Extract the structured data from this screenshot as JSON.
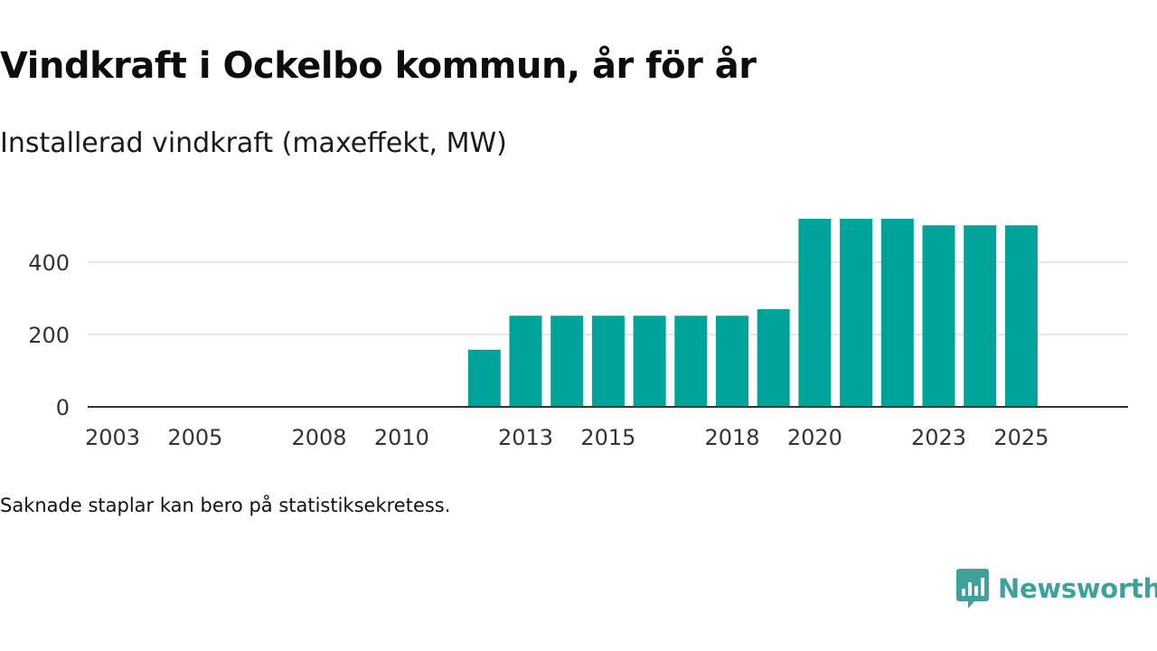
{
  "title": "Vindkraft i Ockelbo kommun, år för år",
  "subtitle": "Installerad vindkraft (maxeffekt, MW)",
  "footnote": "Saknade staplar kan bero på statistiksekretess.",
  "brand": {
    "name": "Newsworthy",
    "color": "#3fa19b"
  },
  "colors": {
    "bar": "#00a39a",
    "grid": "#dddddd",
    "axis": "#333333"
  },
  "chart_data": {
    "type": "bar",
    "title": "Vindkraft i Ockelbo kommun, år för år",
    "subtitle": "Installerad vindkraft (maxeffekt, MW)",
    "xlabel": "",
    "ylabel": "",
    "x_range": [
      2001,
      2026
    ],
    "ylim": [
      0,
      520
    ],
    "yticks": [
      0,
      200,
      400
    ],
    "xticks": [
      2003,
      2005,
      2008,
      2010,
      2013,
      2015,
      2018,
      2020,
      2023,
      2025
    ],
    "grid": true,
    "categories": [
      2012,
      2013,
      2014,
      2015,
      2016,
      2017,
      2018,
      2019,
      2020,
      2021,
      2022,
      2023,
      2024,
      2025
    ],
    "values": [
      158,
      252,
      252,
      252,
      252,
      252,
      252,
      270,
      520,
      520,
      520,
      502,
      502,
      502
    ]
  }
}
